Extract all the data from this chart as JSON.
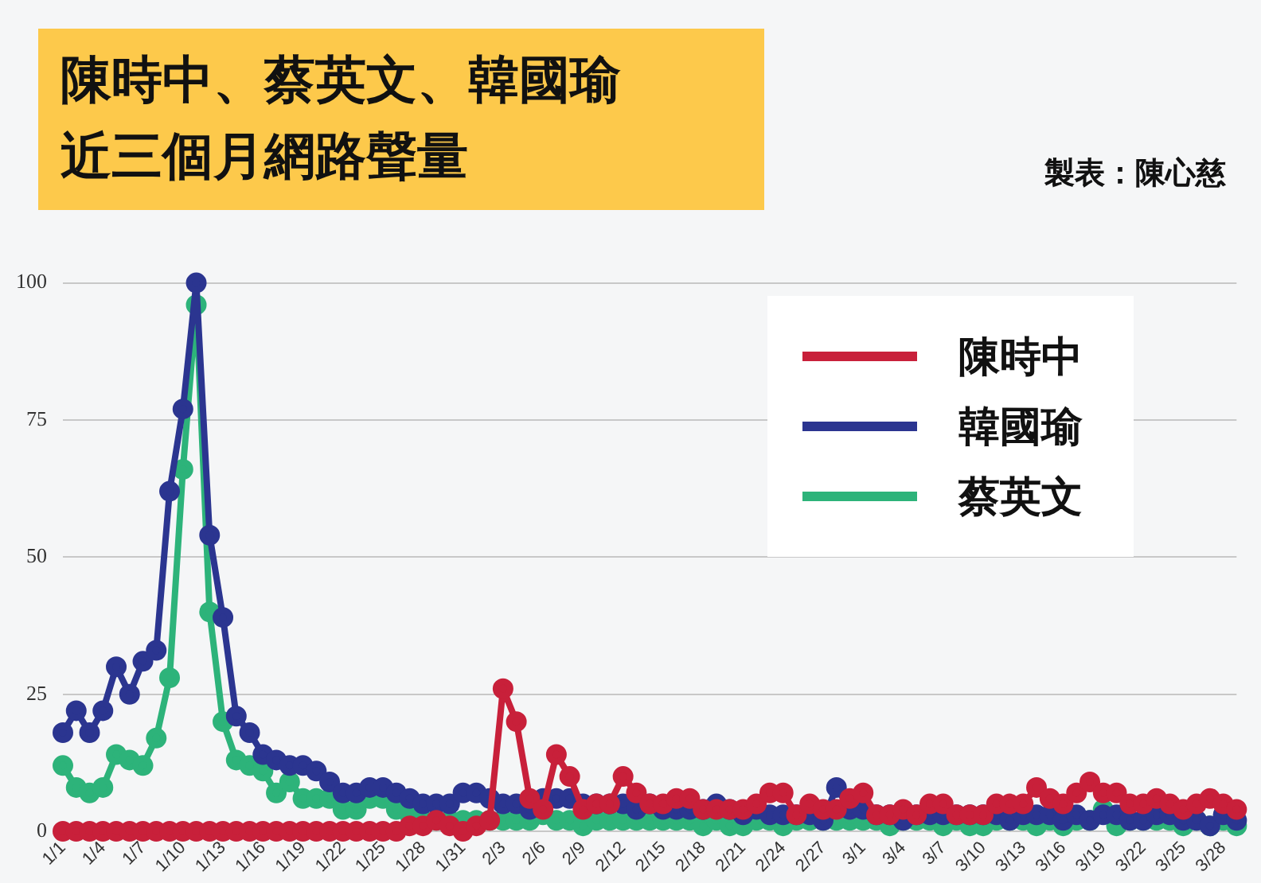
{
  "chart_data": {
    "type": "line",
    "title": "陳時中、蔡英文、韓國瑜近三個月網路聲量",
    "annotations": [
      "製表：陳心慈"
    ],
    "categories": [
      "1/1",
      null,
      null,
      "1/4",
      null,
      null,
      "1/7",
      null,
      null,
      "1/10",
      null,
      null,
      "1/13",
      null,
      null,
      "1/16",
      null,
      null,
      "1/19",
      null,
      null,
      "1/22",
      null,
      null,
      "1/25",
      null,
      null,
      "1/28",
      null,
      null,
      "1/31",
      null,
      null,
      "2/3",
      null,
      null,
      "2/6",
      null,
      null,
      "2/9",
      null,
      null,
      "2/12",
      null,
      null,
      "2/15",
      null,
      null,
      "2/18",
      null,
      null,
      "2/21",
      null,
      null,
      "2/24",
      null,
      null,
      "2/27",
      null,
      null,
      "3/1",
      null,
      null,
      "3/4",
      null,
      null,
      "3/7",
      null,
      null,
      "3/10",
      null,
      null,
      "3/13",
      null,
      null,
      "3/16",
      null,
      null,
      "3/19",
      null,
      null,
      "3/22",
      null,
      null,
      "3/25",
      null,
      null,
      "3/28",
      null
    ],
    "series": [
      {
        "name": "陳時中",
        "color": "#c8203a",
        "values": [
          0,
          0,
          0,
          0,
          0,
          0,
          0,
          0,
          0,
          0,
          0,
          0,
          0,
          0,
          0,
          0,
          0,
          0,
          0,
          0,
          0,
          0,
          0,
          0,
          0,
          0,
          1,
          1,
          2,
          1,
          0,
          1,
          2,
          26,
          20,
          6,
          4,
          14,
          10,
          4,
          5,
          5,
          10,
          7,
          5,
          5,
          6,
          6,
          4,
          4,
          4,
          4,
          5,
          7,
          7,
          3,
          5,
          4,
          4,
          6,
          7,
          3,
          3,
          4,
          3,
          5,
          5,
          3,
          3,
          3,
          5,
          5,
          5,
          8,
          6,
          5,
          7,
          9,
          7,
          7,
          5,
          5,
          6,
          5,
          4,
          5,
          6,
          5,
          4
        ]
      },
      {
        "name": "韓國瑜",
        "color": "#2b3590",
        "values": [
          18,
          22,
          18,
          22,
          30,
          25,
          31,
          33,
          62,
          77,
          100,
          54,
          39,
          21,
          18,
          14,
          13,
          12,
          12,
          11,
          9,
          7,
          7,
          8,
          8,
          7,
          6,
          5,
          5,
          5,
          7,
          7,
          6,
          5,
          5,
          4,
          6,
          6,
          6,
          5,
          5,
          5,
          5,
          4,
          5,
          4,
          4,
          4,
          4,
          5,
          4,
          3,
          4,
          3,
          3,
          3,
          3,
          2,
          8,
          4,
          4,
          3,
          3,
          2,
          3,
          3,
          3,
          3,
          3,
          3,
          3,
          2,
          3,
          3,
          3,
          2,
          3,
          2,
          3,
          3,
          2,
          2,
          3,
          3,
          2,
          2,
          1,
          3,
          2
        ]
      },
      {
        "name": "蔡英文",
        "color": "#2db37a",
        "values": [
          12,
          8,
          7,
          8,
          14,
          13,
          12,
          17,
          28,
          66,
          96,
          40,
          20,
          13,
          12,
          11,
          7,
          9,
          6,
          6,
          6,
          4,
          4,
          6,
          6,
          4,
          3,
          2,
          2,
          2,
          2,
          2,
          2,
          2,
          2,
          2,
          3,
          2,
          2,
          1,
          2,
          2,
          2,
          2,
          2,
          2,
          2,
          2,
          1,
          2,
          1,
          1,
          2,
          2,
          1,
          2,
          2,
          2,
          2,
          2,
          2,
          2,
          1,
          2,
          2,
          2,
          1,
          2,
          1,
          1,
          2,
          2,
          2,
          1,
          2,
          1,
          2,
          2,
          4,
          1,
          2,
          2,
          2,
          2,
          1,
          2,
          1,
          2,
          1
        ]
      }
    ],
    "ylim": [
      0,
      100
    ],
    "yticks": [
      0,
      25,
      50,
      75,
      100
    ],
    "grid": "y",
    "legend": "top right",
    "marker": "circle",
    "line_style": "solid"
  }
}
